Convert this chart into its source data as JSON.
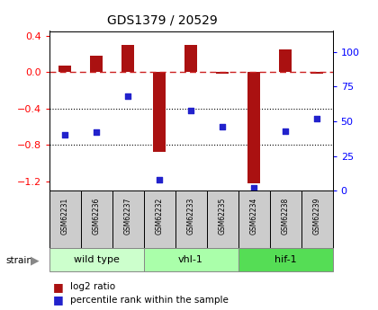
{
  "title": "GDS1379 / 20529",
  "samples": [
    "GSM62231",
    "GSM62236",
    "GSM62237",
    "GSM62232",
    "GSM62233",
    "GSM62235",
    "GSM62234",
    "GSM62238",
    "GSM62239"
  ],
  "log2_ratio": [
    0.07,
    0.18,
    0.3,
    -0.87,
    0.3,
    -0.02,
    -1.22,
    0.25,
    -0.02
  ],
  "percentile_rank": [
    40,
    42,
    68,
    8,
    58,
    46,
    2,
    43,
    52
  ],
  "groups": [
    {
      "label": "wild type",
      "start": 0,
      "end": 3,
      "color": "#ccffcc"
    },
    {
      "label": "vhl-1",
      "start": 3,
      "end": 6,
      "color": "#aaffaa"
    },
    {
      "label": "hif-1",
      "start": 6,
      "end": 9,
      "color": "#55dd55"
    }
  ],
  "ylim_left": [
    -1.3,
    0.45
  ],
  "ylim_right": [
    0,
    115
  ],
  "yticks_left": [
    0.4,
    0.0,
    -0.4,
    -0.8,
    -1.2
  ],
  "yticks_right": [
    100,
    75,
    50,
    25,
    0
  ],
  "bar_color": "#aa1111",
  "dot_color": "#2222cc",
  "bar_width": 0.4,
  "dashed_color": "#cc2222",
  "sample_box_color": "#cccccc",
  "background_color": "#ffffff"
}
